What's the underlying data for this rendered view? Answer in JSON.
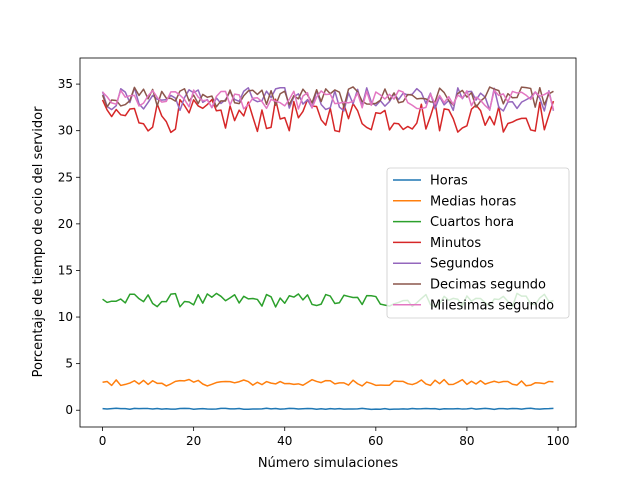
{
  "chart_data": {
    "type": "line",
    "title": "",
    "xlabel": "Número simulaciones",
    "ylabel": "Porcentaje de tiempo de ocio del servidor",
    "xlim": [
      -4.95,
      103.95
    ],
    "ylim": [
      -1.8,
      37.8
    ],
    "xticks": [
      0,
      20,
      40,
      60,
      80,
      100
    ],
    "yticks": [
      0,
      5,
      10,
      15,
      20,
      25,
      30,
      35
    ],
    "grid": false,
    "legend_position": "center-right",
    "n_points": 100,
    "series": [
      {
        "name": "Horas",
        "color": "#1f77b4",
        "base": 0.15,
        "amp": 0.12
      },
      {
        "name": "Medias horas",
        "color": "#ff7f0e",
        "base": 2.95,
        "amp": 0.7
      },
      {
        "name": "Cuartos hora",
        "color": "#2ca02c",
        "base": 11.8,
        "amp": 1.5
      },
      {
        "name": "Minutos",
        "color": "#d62728",
        "base": 31.6,
        "amp": 3.6
      },
      {
        "name": "Segundos",
        "color": "#9467bd",
        "base": 33.4,
        "amp": 2.6
      },
      {
        "name": "Decimas segundo",
        "color": "#8c564b",
        "base": 33.6,
        "amp": 2.2
      },
      {
        "name": "Milesimas segundo",
        "color": "#e377c2",
        "base": 33.3,
        "amp": 2.2
      }
    ]
  }
}
